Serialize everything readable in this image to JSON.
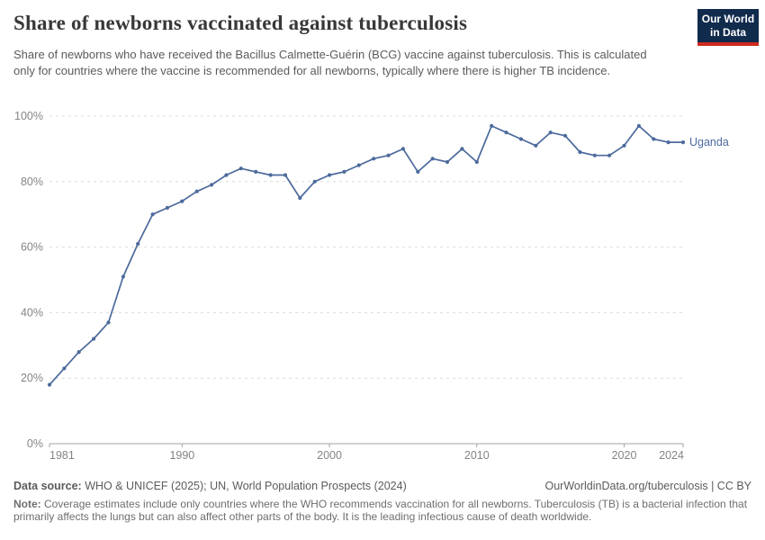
{
  "header": {
    "title": "Share of newborns vaccinated against tuberculosis",
    "subtitle": "Share of newborns who have received the Bacillus Calmette-Guérin (BCG) vaccine against tuberculosis. This is calculated only for countries where the vaccine is recommended for all newborns, typically where there is higher TB incidence.",
    "logo": {
      "line1": "Our World",
      "line2": "in Data",
      "bg_color": "#112B4D",
      "accent_color": "#CE2A1E"
    }
  },
  "chart_data": {
    "type": "line",
    "title": "Share of newborns vaccinated against tuberculosis",
    "xlabel": "",
    "ylabel": "",
    "xlim": [
      1981,
      2024
    ],
    "ylim": [
      0,
      100
    ],
    "grid": "horizontal-dashed",
    "legend_position": "end-of-line",
    "x_ticks": [
      1981,
      1990,
      2000,
      2010,
      2020,
      2024
    ],
    "x_tick_labels": [
      "1981",
      "1990",
      "2000",
      "2010",
      "2020",
      "2024"
    ],
    "y_ticks": [
      0,
      20,
      40,
      60,
      80,
      100
    ],
    "y_tick_labels": [
      "0%",
      "20%",
      "40%",
      "60%",
      "80%",
      "100%"
    ],
    "series": [
      {
        "name": "Uganda",
        "color": "#4C6A9C",
        "x": [
          1981,
          1982,
          1983,
          1984,
          1985,
          1986,
          1987,
          1988,
          1989,
          1990,
          1991,
          1992,
          1993,
          1994,
          1995,
          1996,
          1997,
          1998,
          1999,
          2000,
          2001,
          2002,
          2003,
          2004,
          2005,
          2006,
          2007,
          2008,
          2009,
          2010,
          2011,
          2012,
          2013,
          2014,
          2015,
          2016,
          2017,
          2018,
          2019,
          2020,
          2021,
          2022,
          2023,
          2024
        ],
        "values": [
          18,
          23,
          28,
          32,
          37,
          51,
          61,
          70,
          72,
          74,
          77,
          79,
          82,
          84,
          83,
          82,
          82,
          75,
          80,
          82,
          83,
          85,
          87,
          88,
          90,
          83,
          87,
          86,
          90,
          86,
          97,
          95,
          93,
          91,
          95,
          94,
          89,
          88,
          88,
          91,
          97,
          93,
          92,
          92
        ]
      }
    ],
    "colors": {
      "gridline": "#dcdcdc",
      "axis": "#a3a3a3",
      "tick_label": "#858585"
    }
  },
  "footer": {
    "source_label": "Data source:",
    "source_text": " WHO & UNICEF (2025); UN, World Population Prospects (2024)",
    "link_text": "OurWorldinData.org/tuberculosis | CC BY",
    "note_label": "Note:",
    "note_text": " Coverage estimates include only countries where the WHO recommends vaccination for all newborns. Tuberculosis (TB) is a bacterial infection that primarily affects the lungs but can also affect other parts of the body. It is the leading infectious cause of death worldwide."
  }
}
